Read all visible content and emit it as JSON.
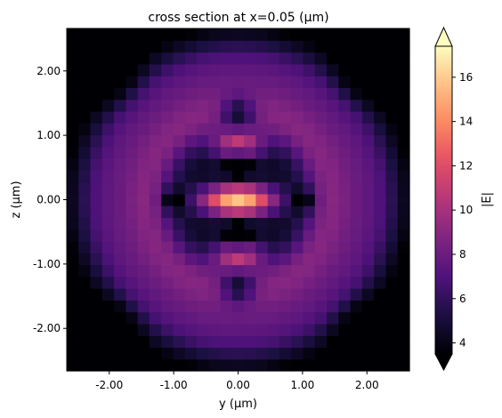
{
  "chart_data": {
    "type": "heatmap",
    "title": "cross section at x=0.05 (μm)",
    "xlabel": "y (μm)",
    "ylabel": "z (μm)",
    "xlim": [
      -2.66,
      2.66
    ],
    "ylim": [
      -2.66,
      2.66
    ],
    "x_ticks": [
      -2.0,
      -1.0,
      0.0,
      1.0,
      2.0
    ],
    "x_tick_labels": [
      "-2.00",
      "-1.00",
      "0.00",
      "1.00",
      "2.00"
    ],
    "y_ticks": [
      -2.0,
      -1.0,
      0.0,
      1.0,
      2.0
    ],
    "y_tick_labels": [
      "-2.00",
      "-1.00",
      "0.00",
      "1.00",
      "2.00"
    ],
    "grid": false,
    "colormap": "magma",
    "colorbar": {
      "label": "|E|",
      "range": [
        3.5,
        17.4
      ],
      "ticks": [
        4,
        6,
        8,
        10,
        12,
        14,
        16
      ],
      "tick_labels": [
        "4",
        "6",
        "8",
        "10",
        "12",
        "14",
        "16"
      ],
      "extend": "both"
    },
    "grid_size": 29,
    "description_of_field": "symmetric pattern: bright core (|E|≈17) near y∈[-0.5,0.5], z≈0; dark nulls at (0,±0.5), (0,±1.3), (±1.0,0); concentric purple rings with dark corners"
  }
}
